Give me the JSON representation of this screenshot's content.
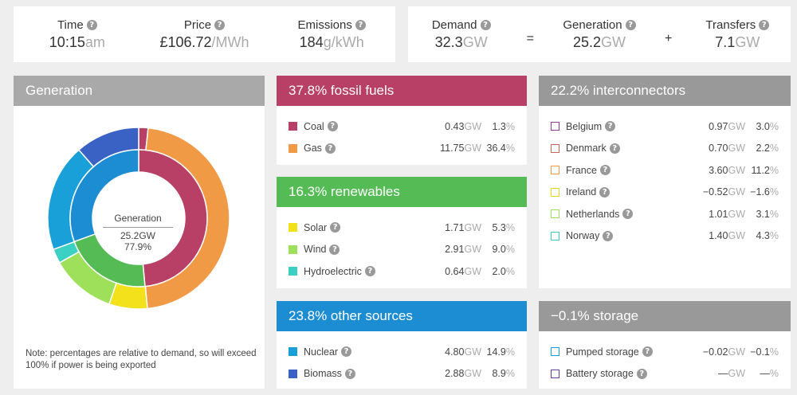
{
  "summary_left": {
    "time": {
      "label": "Time",
      "value": "10:15",
      "unit": "am"
    },
    "price": {
      "label": "Price",
      "value": "£106.72",
      "unit": "/MWh"
    },
    "emissions": {
      "label": "Emissions",
      "value": "184",
      "unit": "g/kWh"
    }
  },
  "summary_right": {
    "demand": {
      "label": "Demand",
      "value": "32.3",
      "unit": "GW"
    },
    "equals": "=",
    "generation": {
      "label": "Generation",
      "value": "25.2",
      "unit": "GW"
    },
    "plus": "+",
    "transfers": {
      "label": "Transfers",
      "value": "7.1",
      "unit": "GW"
    }
  },
  "help_icon": "?",
  "generation_panel": {
    "title": "Generation",
    "center_title": "Generation",
    "center_value": "25.2GW",
    "center_pct": "77.9%",
    "note": "Note: percentages are relative to demand, so will exceed 100% if power is being exported"
  },
  "fossil": {
    "title": "37.8% fossil fuels",
    "color": "#b83f66",
    "rows": [
      {
        "name": "Coal",
        "gw": "0.43",
        "unit": "GW",
        "pct": "1.3",
        "pct_unit": "%",
        "color": "#b83f66"
      },
      {
        "name": "Gas",
        "gw": "11.75",
        "unit": "GW",
        "pct": "36.4",
        "pct_unit": "%",
        "color": "#f09a46"
      }
    ]
  },
  "renewables": {
    "title": "16.3% renewables",
    "color": "#55bb55",
    "rows": [
      {
        "name": "Solar",
        "gw": "1.71",
        "unit": "GW",
        "pct": "5.3",
        "pct_unit": "%",
        "color": "#f2e11b"
      },
      {
        "name": "Wind",
        "gw": "2.91",
        "unit": "GW",
        "pct": "9.0",
        "pct_unit": "%",
        "color": "#9ee05a"
      },
      {
        "name": "Hydroelectric",
        "gw": "0.64",
        "unit": "GW",
        "pct": "2.0",
        "pct_unit": "%",
        "color": "#3cd0c4"
      }
    ]
  },
  "other": {
    "title": "23.8% other sources",
    "color": "#1d8dd3",
    "rows": [
      {
        "name": "Nuclear",
        "gw": "4.80",
        "unit": "GW",
        "pct": "14.9",
        "pct_unit": "%",
        "color": "#1aa0d8"
      },
      {
        "name": "Biomass",
        "gw": "2.88",
        "unit": "GW",
        "pct": "8.9",
        "pct_unit": "%",
        "color": "#3a62c4"
      }
    ]
  },
  "interconnectors": {
    "title": "22.2% interconnectors",
    "color": "#999999",
    "rows": [
      {
        "name": "Belgium",
        "gw": "0.97",
        "unit": "GW",
        "pct": "3.0",
        "pct_unit": "%",
        "color": "#8a3c8e"
      },
      {
        "name": "Denmark",
        "gw": "0.70",
        "unit": "GW",
        "pct": "2.2",
        "pct_unit": "%",
        "color": "#c4665c"
      },
      {
        "name": "France",
        "gw": "3.60",
        "unit": "GW",
        "pct": "11.2",
        "pct_unit": "%",
        "color": "#f09a46"
      },
      {
        "name": "Ireland",
        "gw": "−0.52",
        "unit": "GW",
        "pct": "−1.6",
        "pct_unit": "%",
        "color": "#e8d81b"
      },
      {
        "name": "Netherlands",
        "gw": "1.01",
        "unit": "GW",
        "pct": "3.1",
        "pct_unit": "%",
        "color": "#9ee05a"
      },
      {
        "name": "Norway",
        "gw": "1.40",
        "unit": "GW",
        "pct": "4.3",
        "pct_unit": "%",
        "color": "#3cc8c0"
      }
    ]
  },
  "storage": {
    "title": "−0.1% storage",
    "color": "#999999",
    "rows": [
      {
        "name": "Pumped storage",
        "gw": "−0.02",
        "unit": "GW",
        "pct": "−0.1",
        "pct_unit": "%",
        "color": "#1aa0d8"
      },
      {
        "name": "Battery storage",
        "gw": "—",
        "unit": "GW",
        "pct": "—",
        "pct_unit": "%",
        "color": "#6a3c9e"
      }
    ]
  },
  "chart_data": {
    "type": "pie",
    "title": "",
    "inner_ring": [
      {
        "name": "Fossil fuels",
        "value": 37.8,
        "color": "#b83f66"
      },
      {
        "name": "Renewables",
        "value": 16.3,
        "color": "#55bb55"
      },
      {
        "name": "Other sources",
        "value": 23.8,
        "color": "#1d8dd3"
      }
    ],
    "outer_ring": [
      {
        "name": "Coal",
        "value": 1.3,
        "color": "#b83f66"
      },
      {
        "name": "Gas",
        "value": 36.4,
        "color": "#f09a46"
      },
      {
        "name": "Solar",
        "value": 5.3,
        "color": "#f2e11b"
      },
      {
        "name": "Wind",
        "value": 9.0,
        "color": "#9ee05a"
      },
      {
        "name": "Hydroelectric",
        "value": 2.0,
        "color": "#3cd0c4"
      },
      {
        "name": "Nuclear",
        "value": 14.9,
        "color": "#1aa0d8"
      },
      {
        "name": "Biomass",
        "value": 8.9,
        "color": "#3a62c4"
      }
    ]
  }
}
